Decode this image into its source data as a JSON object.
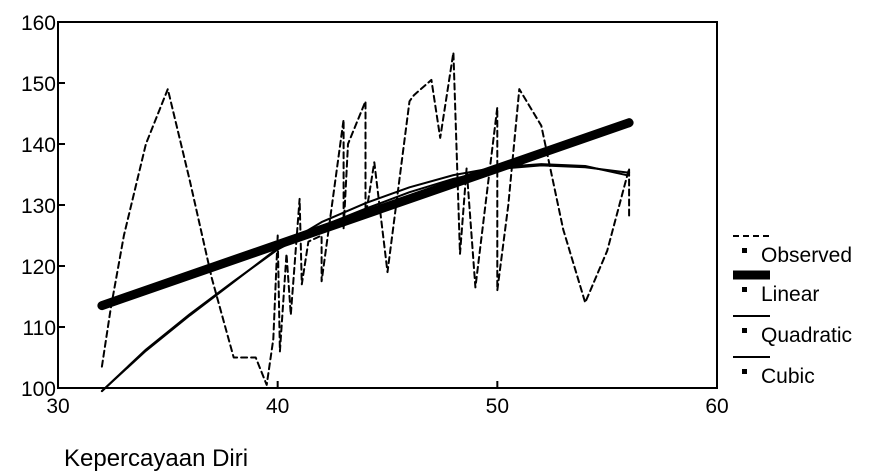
{
  "chart_data": {
    "type": "line",
    "title": "",
    "xlabel": "Kepercayaan Diri",
    "ylabel": "",
    "xlim": [
      30,
      60
    ],
    "ylim": [
      100,
      160
    ],
    "x_ticks": [
      30,
      40,
      50,
      60
    ],
    "y_ticks": [
      100,
      110,
      120,
      130,
      140,
      150,
      160
    ],
    "grid": false,
    "legend_position": "right",
    "series": [
      {
        "name": "Observed",
        "style": "dashed",
        "x": [
          32,
          32.4,
          33,
          34,
          35,
          36,
          37,
          38,
          39,
          39.5,
          39.8,
          40,
          40.1,
          40.4,
          40.6,
          41,
          41.1,
          41.4,
          42,
          42,
          43,
          43,
          43.2,
          44,
          44,
          44.4,
          45,
          46,
          46.2,
          47,
          47.4,
          48,
          48.3,
          48.6,
          49,
          50,
          50,
          50.5,
          51,
          52,
          53,
          54,
          55,
          56,
          56
        ],
        "y": [
          103.5,
          113,
          125,
          140,
          149,
          134,
          118,
          105,
          105,
          100.5,
          108,
          125,
          106,
          122,
          112,
          131,
          117,
          124,
          125,
          117.5,
          144,
          126,
          140,
          147,
          128,
          137,
          119,
          147,
          148,
          150.5,
          141,
          155,
          122,
          136,
          116.5,
          146,
          116,
          130,
          149,
          143,
          126,
          114,
          122.5,
          136,
          128
        ]
      },
      {
        "name": "Linear",
        "style": "thick",
        "x": [
          32,
          56
        ],
        "y": [
          113.5,
          143.5
        ]
      },
      {
        "name": "Quadratic",
        "style": "thin",
        "x": [
          32,
          34,
          36,
          38,
          40,
          42,
          44,
          46,
          48,
          50,
          52,
          54,
          56
        ],
        "y": [
          99.5,
          106.1,
          111.9,
          117.4,
          122.9,
          127.2,
          130.3,
          132.9,
          134.9,
          136.2,
          136.7,
          136.4,
          134.8
        ]
      },
      {
        "name": "Cubic",
        "style": "thin",
        "x": [
          32,
          34,
          36,
          38,
          40,
          42,
          44,
          46,
          48,
          50,
          52,
          54,
          56
        ],
        "y": [
          99.5,
          106.3,
          112.1,
          117.5,
          122.7,
          126.5,
          129.4,
          132.1,
          134.3,
          135.9,
          136.5,
          136.2,
          135.3
        ]
      }
    ]
  }
}
